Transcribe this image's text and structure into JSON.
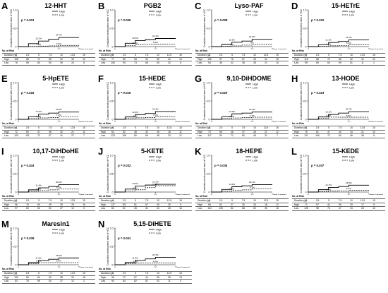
{
  "shared": {
    "ylabel": "Cumulative development rates of HCC",
    "xlabel": "Time (years)",
    "risk_title": "No. at Risk",
    "risk_rows": [
      "Duration (yr)",
      "High",
      "Low"
    ],
    "durations": [
      "0",
      "2.5",
      "5",
      "7.5",
      "10",
      "12.5",
      "15"
    ],
    "x_ticks": [
      "0",
      "10"
    ],
    "y_ticks": [
      "0",
      "0.5",
      "1.0"
    ],
    "series_names": [
      "High",
      "Low"
    ],
    "colors": {
      "line": "#000000",
      "risk_border": "#666666"
    }
  },
  "chart_data": [
    {
      "type": "line",
      "label": "A",
      "title": "12-HHT",
      "p": "p = 0.001",
      "at_5y": [
        "15.1%",
        "1.5%"
      ],
      "at_10y": [
        "24.7%",
        "3.3%"
      ],
      "x": [
        0,
        2.5,
        5,
        7.5,
        10,
        12.5,
        15
      ],
      "series": [
        {
          "name": "High",
          "values": [
            0,
            0.08,
            0.151,
            0.2,
            0.247,
            0.247,
            0.247
          ]
        },
        {
          "name": "Low",
          "values": [
            0,
            0.005,
            0.015,
            0.02,
            0.033,
            0.033,
            0.033
          ]
        }
      ],
      "ylim": [
        0,
        1
      ],
      "xlim": [
        0,
        15
      ],
      "risk": {
        "High": [
          "108",
          "86",
          "72",
          "55",
          "42",
          "30",
          "19"
        ],
        "Low": [
          "76",
          "69",
          "60",
          "50",
          "39",
          "24",
          "8"
        ]
      }
    },
    {
      "type": "line",
      "label": "B",
      "title": "PGB2",
      "p": "p = 0.006",
      "at_5y": [
        "16.5%",
        "5.8%"
      ],
      "at_10y": [
        "22.1%",
        "6.9%"
      ],
      "x": [
        0,
        2.5,
        5,
        7.5,
        10,
        12.5,
        15
      ],
      "series": [
        {
          "name": "High",
          "values": [
            0,
            0.09,
            0.165,
            0.19,
            0.221,
            0.221,
            0.221
          ]
        },
        {
          "name": "Low",
          "values": [
            0,
            0.03,
            0.058,
            0.063,
            0.069,
            0.069,
            0.069
          ]
        }
      ],
      "ylim": [
        0,
        1
      ],
      "xlim": [
        0,
        15
      ],
      "risk": {
        "High": [
          "77",
          "65",
          "53",
          "42",
          "35",
          "22",
          "14"
        ],
        "Low": [
          "106",
          "90",
          "73",
          "65",
          "50",
          "32",
          "8"
        ]
      }
    },
    {
      "type": "line",
      "label": "C",
      "title": "Lyso-PAF",
      "p": "p = 0.008",
      "at_5y": [
        "11.9%",
        "2%"
      ],
      "at_10y": [
        "19.9%",
        "6%"
      ],
      "x": [
        0,
        2.5,
        5,
        7.5,
        10,
        12.5,
        15
      ],
      "series": [
        {
          "name": "High",
          "values": [
            0,
            0.06,
            0.119,
            0.15,
            0.199,
            0.199,
            0.199
          ]
        },
        {
          "name": "Low",
          "values": [
            0,
            0.01,
            0.02,
            0.04,
            0.06,
            0.06,
            0.06
          ]
        }
      ],
      "ylim": [
        0,
        1
      ],
      "xlim": [
        0,
        15
      ],
      "risk": {
        "High": [
          "130",
          "97",
          "76",
          "57",
          "40",
          "31",
          "15"
        ],
        "Low": [
          "54",
          "48",
          "42",
          "38",
          "28",
          "21",
          "10"
        ]
      }
    },
    {
      "type": "line",
      "label": "D",
      "title": "15-HETrE",
      "p": "p = 0.010",
      "at_5y": [
        "11.1%",
        "2.1%"
      ],
      "at_10y": [
        "18.1%",
        "5.3%"
      ],
      "x": [
        0,
        2.5,
        5,
        7.5,
        10,
        12.5,
        15
      ],
      "series": [
        {
          "name": "High",
          "values": [
            0,
            0.05,
            0.111,
            0.14,
            0.181,
            0.181,
            0.181
          ]
        },
        {
          "name": "Low",
          "values": [
            0,
            0.01,
            0.021,
            0.03,
            0.053,
            0.053,
            0.053
          ]
        }
      ],
      "ylim": [
        0,
        1
      ],
      "xlim": [
        0,
        15
      ],
      "risk": {
        "High": [
          "115",
          "88",
          "70",
          "56",
          "42",
          "31",
          "20"
        ],
        "Low": [
          "69",
          "69",
          "64",
          "59",
          "51",
          "11",
          "2"
        ]
      }
    },
    {
      "type": "line",
      "label": "E",
      "title": "5-HpETE",
      "p": "p = 0.015",
      "at_5y": [
        "14.0%",
        "3.8%"
      ],
      "at_10y": [
        "19.8%",
        "7.3%"
      ],
      "x": [
        0,
        2.5,
        5,
        7.5,
        10,
        12.5,
        15
      ],
      "series": [
        {
          "name": "High",
          "values": [
            0,
            0.07,
            0.14,
            0.17,
            0.198,
            0.198,
            0.198
          ]
        },
        {
          "name": "Low",
          "values": [
            0,
            0.02,
            0.038,
            0.05,
            0.073,
            0.073,
            0.073
          ]
        }
      ],
      "ylim": [
        0,
        1
      ],
      "xlim": [
        0,
        15
      ],
      "risk": {
        "High": [
          "72",
          "60",
          "47",
          "38",
          "32",
          "21",
          "11"
        ],
        "Low": [
          "123",
          "101",
          "72",
          "57",
          "41",
          "27",
          "7"
        ]
      }
    },
    {
      "type": "line",
      "label": "F",
      "title": "15-HEDE",
      "p": "p = 0.015",
      "at_5y": [
        "12.9%",
        "4.1%"
      ],
      "at_10y": [
        "21.3%",
        "7.2%"
      ],
      "x": [
        0,
        2.5,
        5,
        7.5,
        10,
        12.5,
        15
      ],
      "series": [
        {
          "name": "High",
          "values": [
            0,
            0.065,
            0.129,
            0.16,
            0.213,
            0.213,
            0.213
          ]
        },
        {
          "name": "Low",
          "values": [
            0,
            0.02,
            0.041,
            0.05,
            0.072,
            0.072,
            0.072
          ]
        }
      ],
      "ylim": [
        0,
        1
      ],
      "xlim": [
        0,
        15
      ],
      "risk": {
        "High": [
          "64",
          "52",
          "38",
          "32",
          "26",
          "18",
          "11"
        ],
        "Low": [
          "123",
          "106",
          "80",
          "69",
          "48",
          "33",
          "17"
        ]
      }
    },
    {
      "type": "line",
      "label": "G",
      "title": "9,10-DiHDOME",
      "p": "p = 0.020",
      "at_5y": [
        "14.9%",
        "3.7%"
      ],
      "at_10y": [
        "19.9%",
        "5.7%"
      ],
      "x": [
        0,
        2.5,
        5,
        7.5,
        10,
        12.5,
        15
      ],
      "series": [
        {
          "name": "High",
          "values": [
            0,
            0.07,
            0.149,
            0.17,
            0.199,
            0.199,
            0.199
          ]
        },
        {
          "name": "Low",
          "values": [
            0,
            0.02,
            0.037,
            0.045,
            0.057,
            0.057,
            0.057
          ]
        }
      ],
      "ylim": [
        0,
        1
      ],
      "xlim": [
        0,
        15
      ],
      "risk": {
        "High": [
          "70",
          "58",
          "48",
          "37",
          "28",
          "21",
          "12"
        ],
        "Low": [
          "117",
          "92",
          "71",
          "60",
          "45",
          "31",
          "7"
        ]
      }
    },
    {
      "type": "line",
      "label": "H",
      "title": "13-HODE",
      "p": "p = 0.023",
      "at_5y": [
        "13.1%",
        "6.0%"
      ],
      "at_10y": [
        "20.7%",
        "5.8%"
      ],
      "x": [
        0,
        2.5,
        5,
        7.5,
        10,
        12.5,
        15
      ],
      "series": [
        {
          "name": "High",
          "values": [
            0,
            0.065,
            0.131,
            0.17,
            0.207,
            0.207,
            0.207
          ]
        },
        {
          "name": "Low",
          "values": [
            0,
            0.03,
            0.06,
            0.058,
            0.058,
            0.058,
            0.058
          ]
        }
      ],
      "ylim": [
        0,
        1
      ],
      "xlim": [
        0,
        15
      ],
      "risk": {
        "High": [
          "76",
          "61",
          "47",
          "40",
          "34",
          "21",
          "13"
        ],
        "Low": [
          "121",
          "100",
          "72",
          "60",
          "45",
          "36",
          "8"
        ]
      }
    },
    {
      "type": "line",
      "label": "I",
      "title": "10,17-DiHDoHE",
      "p": "p = 0.024",
      "at_5y": [
        "11.4%",
        "4.0%"
      ],
      "at_10y": [
        "20.0%",
        "8.1%"
      ],
      "x": [
        0,
        2.5,
        5,
        7.5,
        10,
        12.5,
        15
      ],
      "series": [
        {
          "name": "High",
          "values": [
            0,
            0.06,
            0.114,
            0.15,
            0.2,
            0.2,
            0.2
          ]
        },
        {
          "name": "Low",
          "values": [
            0,
            0.02,
            0.04,
            0.06,
            0.081,
            0.081,
            0.081
          ]
        }
      ],
      "ylim": [
        0,
        1
      ],
      "xlim": [
        0,
        15
      ],
      "risk": {
        "High": [
          "96",
          "76",
          "60",
          "49",
          "35",
          "25",
          "16"
        ],
        "Low": [
          "97",
          "80",
          "62",
          "50",
          "37",
          "12",
          "5"
        ]
      }
    },
    {
      "type": "line",
      "label": "J",
      "title": "5-KETE",
      "p": "p = 0.032",
      "at_5y": [
        "16.5%",
        "6.2%"
      ],
      "at_10y": [
        "21.1%",
        "17.3%"
      ],
      "x": [
        0,
        2.5,
        5,
        7.5,
        10,
        12.5,
        15
      ],
      "series": [
        {
          "name": "High",
          "values": [
            0,
            0.08,
            0.165,
            0.19,
            0.211,
            0.211,
            0.211
          ]
        },
        {
          "name": "Low",
          "values": [
            0,
            0.03,
            0.062,
            0.12,
            0.173,
            0.173,
            0.173
          ]
        }
      ],
      "ylim": [
        0,
        1
      ],
      "xlim": [
        0,
        15
      ],
      "risk": {
        "High": [
          "127",
          "101",
          "81",
          "67",
          "45",
          "29",
          "6"
        ],
        "Low": [
          "60",
          "51",
          "45",
          "40",
          "34",
          "26",
          "16"
        ]
      }
    },
    {
      "type": "line",
      "label": "K",
      "title": "18-HEPE",
      "p": "p = 0.034",
      "at_5y": [
        "14.4%",
        "4.1%"
      ],
      "at_10y": [
        "20.1%",
        "8.3%"
      ],
      "x": [
        0,
        2.5,
        5,
        7.5,
        10,
        12.5,
        15
      ],
      "series": [
        {
          "name": "High",
          "values": [
            0,
            0.07,
            0.144,
            0.17,
            0.201,
            0.201,
            0.201
          ]
        },
        {
          "name": "Low",
          "values": [
            0,
            0.02,
            0.041,
            0.06,
            0.083,
            0.083,
            0.083
          ]
        }
      ],
      "ylim": [
        0,
        1
      ],
      "xlim": [
        0,
        15
      ],
      "risk": {
        "High": [
          "66",
          "51",
          "37",
          "30",
          "26",
          "18",
          "12"
        ],
        "Low": [
          "124",
          "105",
          "82",
          "68",
          "52",
          "35",
          "16"
        ]
      }
    },
    {
      "type": "line",
      "label": "L",
      "title": "15-KEDE",
      "p": "p = 0.037",
      "at_5y": [
        "12.7%",
        "2.6%"
      ],
      "at_10y": [
        "18.6%",
        "5.0%"
      ],
      "x": [
        0,
        2.5,
        5,
        7.5,
        10,
        12.5,
        15
      ],
      "series": [
        {
          "name": "High",
          "values": [
            0,
            0.065,
            0.127,
            0.15,
            0.186,
            0.186,
            0.186
          ]
        },
        {
          "name": "Low",
          "values": [
            0,
            0.01,
            0.026,
            0.035,
            0.05,
            0.05,
            0.05
          ]
        }
      ],
      "ylim": [
        0,
        1
      ],
      "xlim": [
        0,
        15
      ],
      "risk": {
        "High": [
          "71",
          "57",
          "44",
          "36",
          "29",
          "17",
          "9"
        ],
        "Low": [
          "126",
          "98",
          "74",
          "47",
          "33",
          "25",
          "16"
        ]
      }
    },
    {
      "type": "line",
      "label": "M",
      "title": "Maresin1",
      "p": "p = 0.039",
      "at_5y": [
        "11.6%",
        "5.9%"
      ],
      "at_10y": [
        "18.5%",
        "5.9%"
      ],
      "x": [
        0,
        2.5,
        5,
        7.5,
        10,
        12.5,
        15
      ],
      "series": [
        {
          "name": "High",
          "values": [
            0,
            0.06,
            0.116,
            0.15,
            0.185,
            0.185,
            0.185
          ]
        },
        {
          "name": "Low",
          "values": [
            0,
            0.03,
            0.059,
            0.059,
            0.059,
            0.059,
            0.059
          ]
        }
      ],
      "ylim": [
        0,
        1
      ],
      "xlim": [
        0,
        15
      ],
      "risk": {
        "High": [
          "100",
          "80",
          "64",
          "50",
          "38",
          "26",
          "18"
        ],
        "Low": [
          "83",
          "78",
          "59",
          "50",
          "37",
          "12",
          "2"
        ]
      }
    },
    {
      "type": "line",
      "label": "N",
      "title": "5,15-DiHETE",
      "p": "p = 0.041",
      "at_5y": [
        "11.9%",
        "4.6%"
      ],
      "at_10y": [
        "20.3%",
        "4.6%"
      ],
      "x": [
        0,
        2.5,
        5,
        7.5,
        10,
        12.5,
        15
      ],
      "series": [
        {
          "name": "High",
          "values": [
            0,
            0.06,
            0.119,
            0.16,
            0.203,
            0.203,
            0.203
          ]
        },
        {
          "name": "Low",
          "values": [
            0,
            0.025,
            0.046,
            0.046,
            0.046,
            0.046,
            0.046
          ]
        }
      ],
      "ylim": [
        0,
        1
      ],
      "xlim": [
        0,
        15
      ],
      "risk": {
        "High": [
          "96",
          "72",
          "57",
          "44",
          "36",
          "25",
          "13"
        ],
        "Low": [
          "94",
          "84",
          "62",
          "51",
          "33",
          "11",
          "4"
        ]
      }
    }
  ]
}
